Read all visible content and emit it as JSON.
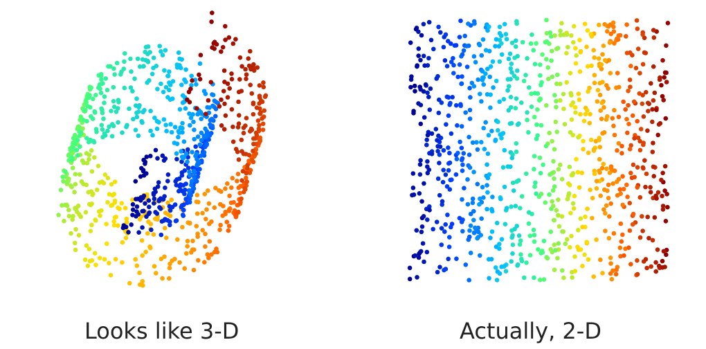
{
  "chart_data": [
    {
      "type": "scatter",
      "variant": "3d-swiss-roll",
      "title": "",
      "caption": "Looks like 3-D",
      "xlabel": "",
      "ylabel": "",
      "grid": false,
      "legend": "none",
      "point_count": 900,
      "colormap": "jet",
      "colors": [
        "#00008f",
        "#0040ff",
        "#00bfff",
        "#40ff80",
        "#ffdf00",
        "#ff6000",
        "#8f0000"
      ]
    },
    {
      "type": "scatter",
      "variant": "2d-unrolled-plane",
      "title": "",
      "caption": "Actually, 2-D",
      "xlabel": "",
      "ylabel": "",
      "grid": false,
      "legend": "none",
      "point_count": 900,
      "colormap": "jet",
      "colors": [
        "#00008f",
        "#0040ff",
        "#00bfff",
        "#40ff80",
        "#ffdf00",
        "#ff6000",
        "#8f0000"
      ]
    }
  ]
}
